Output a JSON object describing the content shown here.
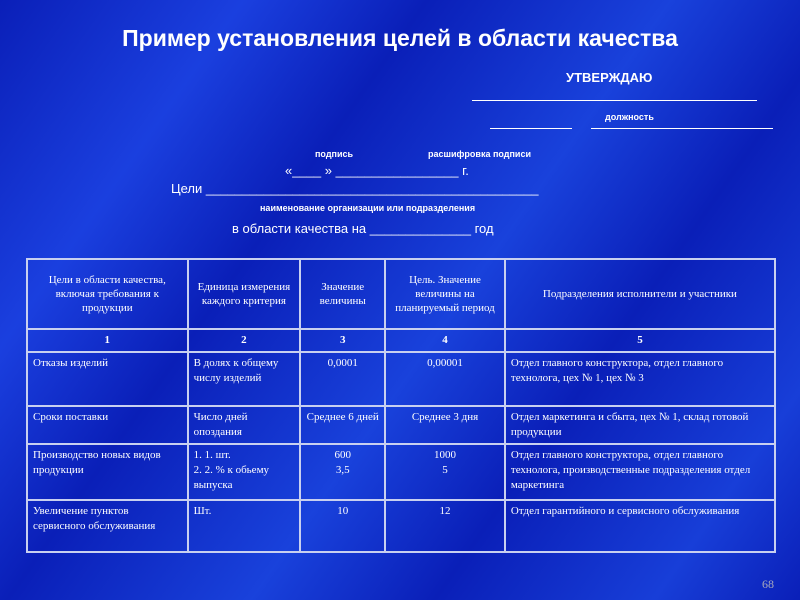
{
  "title": "Пример установления целей в области качества",
  "approve": "УТВЕРЖДАЮ",
  "position_label": "должность",
  "signature_label": "подпись",
  "signature_decode_label": "расшифровка подписи",
  "date_line": "«____ » _________________ г.",
  "goals_line": "Цели ______________________________________________",
  "org_label": "наименование организации  или подразделения",
  "year_line": "в области качества на ______________ год",
  "table": {
    "headers": [
      "Цели в области качества, включая требования к продукции",
      "Единица измерения каждого критерия",
      "Значение величины",
      "Цель. Значение величины на планируемый период",
      "Подразделения исполнители и участники"
    ],
    "numbers": [
      "1",
      "2",
      "3",
      "4",
      "5"
    ],
    "rows": [
      [
        "Отказы изделий",
        "В долях к общему числу изделий",
        "0,0001",
        "0,00001",
        "Отдел главного конструктора, отдел главного технолога, цех № 1, цех № 3"
      ],
      [
        "Сроки поставки",
        "Число дней опоздания",
        "Среднее 6 дней",
        "Среднее 3 дня",
        "Отдел маркетинга и сбыта, цех № 1, склад готовой продукции"
      ],
      [
        "Производство новых видов продукции",
        [
          "1.    1. шт.",
          "2.    2. % к обьему выпуска"
        ],
        [
          "600",
          "3,5"
        ],
        [
          "1000",
          "5"
        ],
        "Отдел главного конструктора, отдел главного технолога, производственные подразделения отдел маркетинга"
      ],
      [
        "Увеличение пунктов сервисного обслуживания",
        "Шт.",
        "10",
        "12",
        "Отдел гарантийного и сервисного обслуживания"
      ]
    ]
  },
  "page_number": "68"
}
